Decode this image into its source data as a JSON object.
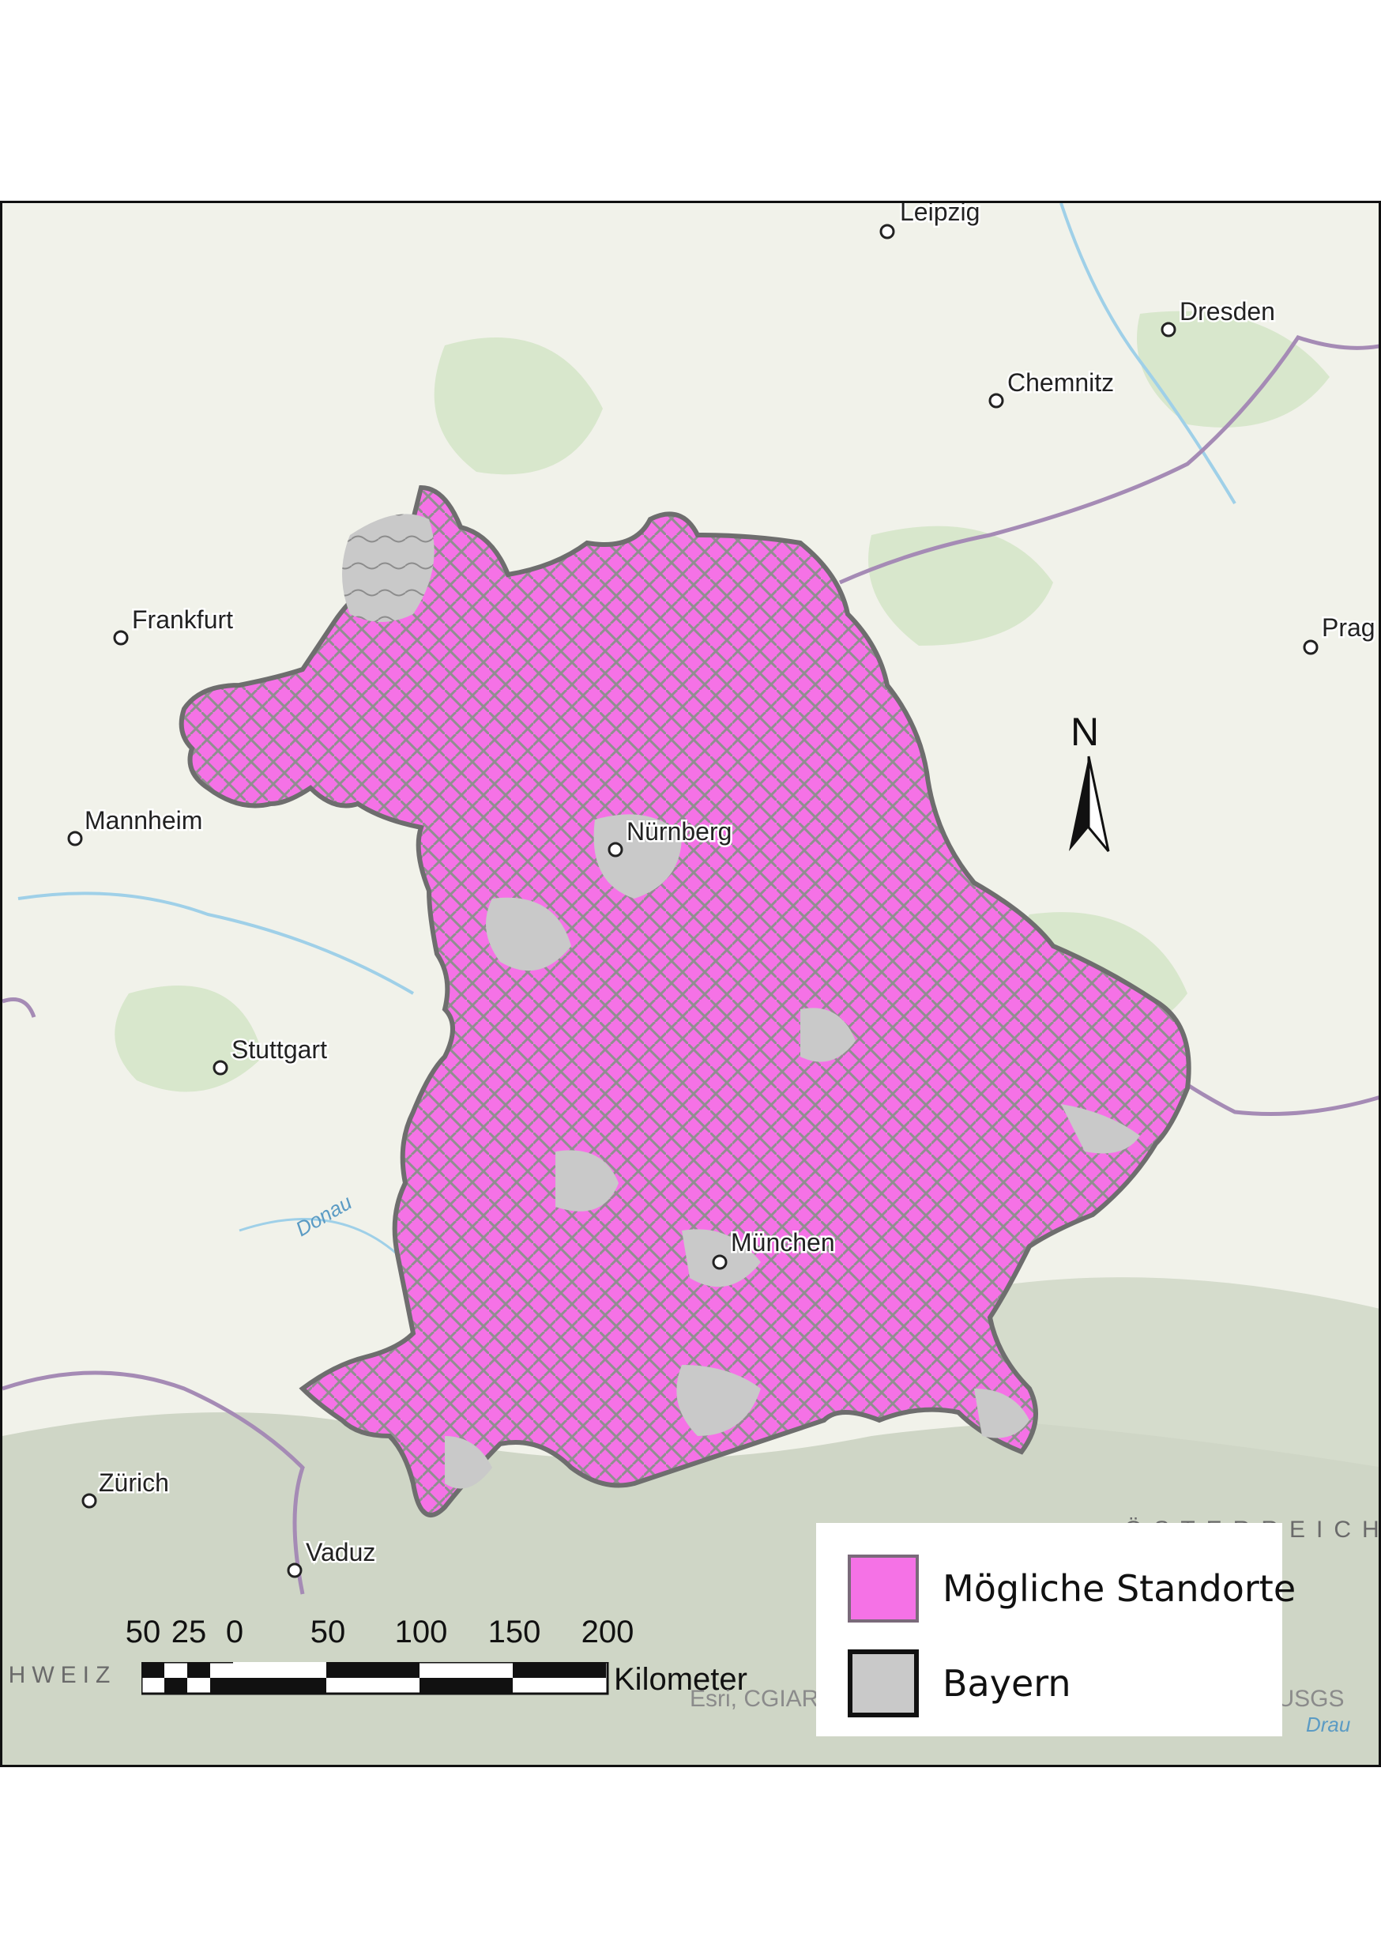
{
  "map": {
    "cities": [
      {
        "name": "Leipzig"
      },
      {
        "name": "Dresden"
      },
      {
        "name": "Chemnitz"
      },
      {
        "name": "Frankfurt"
      },
      {
        "name": "Prag"
      },
      {
        "name": "Mannheim"
      },
      {
        "name": "Nürnberg"
      },
      {
        "name": "Stuttgart"
      },
      {
        "name": "München"
      },
      {
        "name": "Zürich"
      },
      {
        "name": "Vaduz"
      }
    ],
    "rivers": [
      {
        "name": "Donau"
      },
      {
        "name": "Drau"
      }
    ],
    "countries": [
      {
        "name": "ÖSTERREICH"
      },
      {
        "name": "SCHWEIZ"
      }
    ],
    "colors": {
      "candidate_sites": "#f572e6",
      "bavaria": "#c9c9c9",
      "boundary": "#6e6e6e",
      "country_border": "#a58bb5",
      "basemap": "#f1f2ea",
      "forest": "#d8e7cc",
      "alps": "#cfd6c6",
      "water": "#9fd0e8"
    }
  },
  "legend": {
    "items": [
      {
        "label": "Mögliche Standorte",
        "color": "#f572e6",
        "border": "#7a6a7a"
      },
      {
        "label": "Bayern",
        "color": "#c9c9c9",
        "border": "#111111"
      }
    ]
  },
  "scale_bar": {
    "labels": [
      "50",
      "25",
      "0",
      "50",
      "100",
      "150",
      "200"
    ],
    "unit": "Kilometer"
  },
  "north_arrow": {
    "label": "N"
  },
  "attribution": "Esri, CGIAR, USGS, Esri, HERE, Garmin, FAO, NOAA, USGS"
}
